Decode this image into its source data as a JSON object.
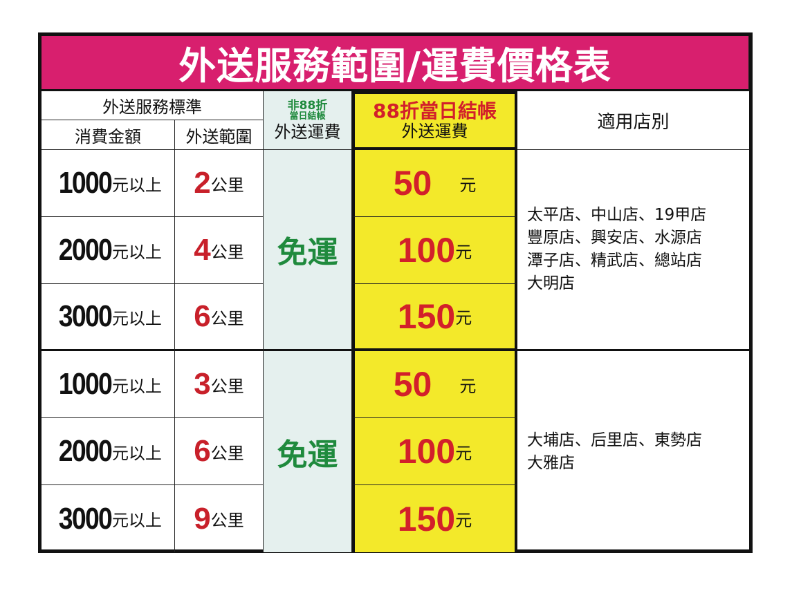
{
  "title": "外送服務範圍/運費價格表",
  "header": {
    "service_standard": "外送服務標準",
    "amount": "消費金額",
    "range": "外送範圍",
    "non88_line1": "非88折",
    "non88_line2": "當日結帳",
    "non88_fee": "外送運費",
    "d88_line1": "88折當日結帳",
    "d88_fee": "外送運費",
    "stores": "適用店別"
  },
  "colors": {
    "title_bg": "#d81f6e",
    "yellow": "#f3e92a",
    "green": "#1f8a3d",
    "red": "#c8202a"
  },
  "groups": [
    {
      "free": "免運",
      "stores": "太平店、中山店、19甲店\n豐原店、興安店、水源店\n潭子店、精武店、總站店\n大明店",
      "rows": [
        {
          "amount": "1000",
          "amount_unit": "元以上",
          "distance": "2",
          "distance_unit": "公里",
          "fee": "50",
          "fee_unit": "元"
        },
        {
          "amount": "2000",
          "amount_unit": "元以上",
          "distance": "4",
          "distance_unit": "公里",
          "fee": "100",
          "fee_unit": "元"
        },
        {
          "amount": "3000",
          "amount_unit": "元以上",
          "distance": "6",
          "distance_unit": "公里",
          "fee": "150",
          "fee_unit": "元"
        }
      ]
    },
    {
      "free": "免運",
      "stores": "大埔店、后里店、東勢店\n大雅店",
      "rows": [
        {
          "amount": "1000",
          "amount_unit": "元以上",
          "distance": "3",
          "distance_unit": "公里",
          "fee": "50",
          "fee_unit": "元"
        },
        {
          "amount": "2000",
          "amount_unit": "元以上",
          "distance": "6",
          "distance_unit": "公里",
          "fee": "100",
          "fee_unit": "元"
        },
        {
          "amount": "3000",
          "amount_unit": "元以上",
          "distance": "9",
          "distance_unit": "公里",
          "fee": "150",
          "fee_unit": "元"
        }
      ]
    }
  ]
}
